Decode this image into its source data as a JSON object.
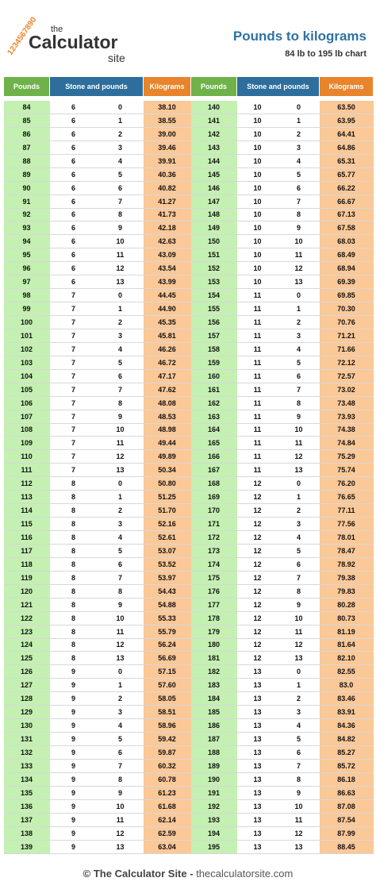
{
  "logo": {
    "digits": "1234567890",
    "small": "the",
    "main": "Calculator",
    "sub": "site"
  },
  "header": {
    "title": "Pounds to kilograms",
    "subtitle": "84 lb to 195 lb chart"
  },
  "table": {
    "columns": [
      "Pounds",
      "Stone and pounds",
      "Kilograms",
      "Pounds",
      "Stone and pounds",
      "Kilograms"
    ],
    "rows": [
      [
        "84",
        "6",
        "0",
        "38.10",
        "140",
        "10",
        "0",
        "63.50"
      ],
      [
        "85",
        "6",
        "1",
        "38.55",
        "141",
        "10",
        "1",
        "63.95"
      ],
      [
        "86",
        "6",
        "2",
        "39.00",
        "142",
        "10",
        "2",
        "64.41"
      ],
      [
        "87",
        "6",
        "3",
        "39.46",
        "143",
        "10",
        "3",
        "64.86"
      ],
      [
        "88",
        "6",
        "4",
        "39.91",
        "144",
        "10",
        "4",
        "65.31"
      ],
      [
        "89",
        "6",
        "5",
        "40.36",
        "145",
        "10",
        "5",
        "65.77"
      ],
      [
        "90",
        "6",
        "6",
        "40.82",
        "146",
        "10",
        "6",
        "66.22"
      ],
      [
        "91",
        "6",
        "7",
        "41.27",
        "147",
        "10",
        "7",
        "66.67"
      ],
      [
        "92",
        "6",
        "8",
        "41.73",
        "148",
        "10",
        "8",
        "67.13"
      ],
      [
        "93",
        "6",
        "9",
        "42.18",
        "149",
        "10",
        "9",
        "67.58"
      ],
      [
        "94",
        "6",
        "10",
        "42.63",
        "150",
        "10",
        "10",
        "68.03"
      ],
      [
        "95",
        "6",
        "11",
        "43.09",
        "151",
        "10",
        "11",
        "68.49"
      ],
      [
        "96",
        "6",
        "12",
        "43.54",
        "152",
        "10",
        "12",
        "68.94"
      ],
      [
        "97",
        "6",
        "13",
        "43.99",
        "153",
        "10",
        "13",
        "69.39"
      ],
      [
        "98",
        "7",
        "0",
        "44.45",
        "154",
        "11",
        "0",
        "69.85"
      ],
      [
        "99",
        "7",
        "1",
        "44.90",
        "155",
        "11",
        "1",
        "70.30"
      ],
      [
        "100",
        "7",
        "2",
        "45.35",
        "156",
        "11",
        "2",
        "70.76"
      ],
      [
        "101",
        "7",
        "3",
        "45.81",
        "157",
        "11",
        "3",
        "71.21"
      ],
      [
        "102",
        "7",
        "4",
        "46.26",
        "158",
        "11",
        "4",
        "71.66"
      ],
      [
        "103",
        "7",
        "5",
        "46.72",
        "159",
        "11",
        "5",
        "72.12"
      ],
      [
        "104",
        "7",
        "6",
        "47.17",
        "160",
        "11",
        "6",
        "72.57"
      ],
      [
        "105",
        "7",
        "7",
        "47.62",
        "161",
        "11",
        "7",
        "73.02"
      ],
      [
        "106",
        "7",
        "8",
        "48.08",
        "162",
        "11",
        "8",
        "73.48"
      ],
      [
        "107",
        "7",
        "9",
        "48.53",
        "163",
        "11",
        "9",
        "73.93"
      ],
      [
        "108",
        "7",
        "10",
        "48.98",
        "164",
        "11",
        "10",
        "74.38"
      ],
      [
        "109",
        "7",
        "11",
        "49.44",
        "165",
        "11",
        "11",
        "74.84"
      ],
      [
        "110",
        "7",
        "12",
        "49.89",
        "166",
        "11",
        "12",
        "75.29"
      ],
      [
        "111",
        "7",
        "13",
        "50.34",
        "167",
        "11",
        "13",
        "75.74"
      ],
      [
        "112",
        "8",
        "0",
        "50.80",
        "168",
        "12",
        "0",
        "76.20"
      ],
      [
        "113",
        "8",
        "1",
        "51.25",
        "169",
        "12",
        "1",
        "76.65"
      ],
      [
        "114",
        "8",
        "2",
        "51.70",
        "170",
        "12",
        "2",
        "77.11"
      ],
      [
        "115",
        "8",
        "3",
        "52.16",
        "171",
        "12",
        "3",
        "77.56"
      ],
      [
        "116",
        "8",
        "4",
        "52.61",
        "172",
        "12",
        "4",
        "78.01"
      ],
      [
        "117",
        "8",
        "5",
        "53.07",
        "173",
        "12",
        "5",
        "78.47"
      ],
      [
        "118",
        "8",
        "6",
        "53.52",
        "174",
        "12",
        "6",
        "78.92"
      ],
      [
        "119",
        "8",
        "7",
        "53.97",
        "175",
        "12",
        "7",
        "79.38"
      ],
      [
        "120",
        "8",
        "8",
        "54.43",
        "176",
        "12",
        "8",
        "79.83"
      ],
      [
        "121",
        "8",
        "9",
        "54.88",
        "177",
        "12",
        "9",
        "80.28"
      ],
      [
        "122",
        "8",
        "10",
        "55.33",
        "178",
        "12",
        "10",
        "80.73"
      ],
      [
        "123",
        "8",
        "11",
        "55.79",
        "179",
        "12",
        "11",
        "81.19"
      ],
      [
        "124",
        "8",
        "12",
        "56.24",
        "180",
        "12",
        "12",
        "81.64"
      ],
      [
        "125",
        "8",
        "13",
        "56.69",
        "181",
        "12",
        "13",
        "82.10"
      ],
      [
        "126",
        "9",
        "0",
        "57.15",
        "182",
        "13",
        "0",
        "82.55"
      ],
      [
        "127",
        "9",
        "1",
        "57.60",
        "183",
        "13",
        "1",
        "83.0"
      ],
      [
        "128",
        "9",
        "2",
        "58.05",
        "184",
        "13",
        "2",
        "83.46"
      ],
      [
        "129",
        "9",
        "3",
        "58.51",
        "185",
        "13",
        "3",
        "83.91"
      ],
      [
        "130",
        "9",
        "4",
        "58.96",
        "186",
        "13",
        "4",
        "84.36"
      ],
      [
        "131",
        "9",
        "5",
        "59.42",
        "187",
        "13",
        "5",
        "84.82"
      ],
      [
        "132",
        "9",
        "6",
        "59.87",
        "188",
        "13",
        "6",
        "85.27"
      ],
      [
        "133",
        "9",
        "7",
        "60.32",
        "189",
        "13",
        "7",
        "85.72"
      ],
      [
        "134",
        "9",
        "8",
        "60.78",
        "190",
        "13",
        "8",
        "86.18"
      ],
      [
        "135",
        "9",
        "9",
        "61.23",
        "191",
        "13",
        "9",
        "86.63"
      ],
      [
        "136",
        "9",
        "10",
        "61.68",
        "192",
        "13",
        "10",
        "87.08"
      ],
      [
        "137",
        "9",
        "11",
        "62.14",
        "193",
        "13",
        "11",
        "87.54"
      ],
      [
        "138",
        "9",
        "12",
        "62.59",
        "194",
        "13",
        "12",
        "87.99"
      ],
      [
        "139",
        "9",
        "13",
        "63.04",
        "195",
        "13",
        "13",
        "88.45"
      ]
    ]
  },
  "footer": {
    "brand": "© The Calculator Site -",
    "url": "thecalculatorsite.com"
  }
}
